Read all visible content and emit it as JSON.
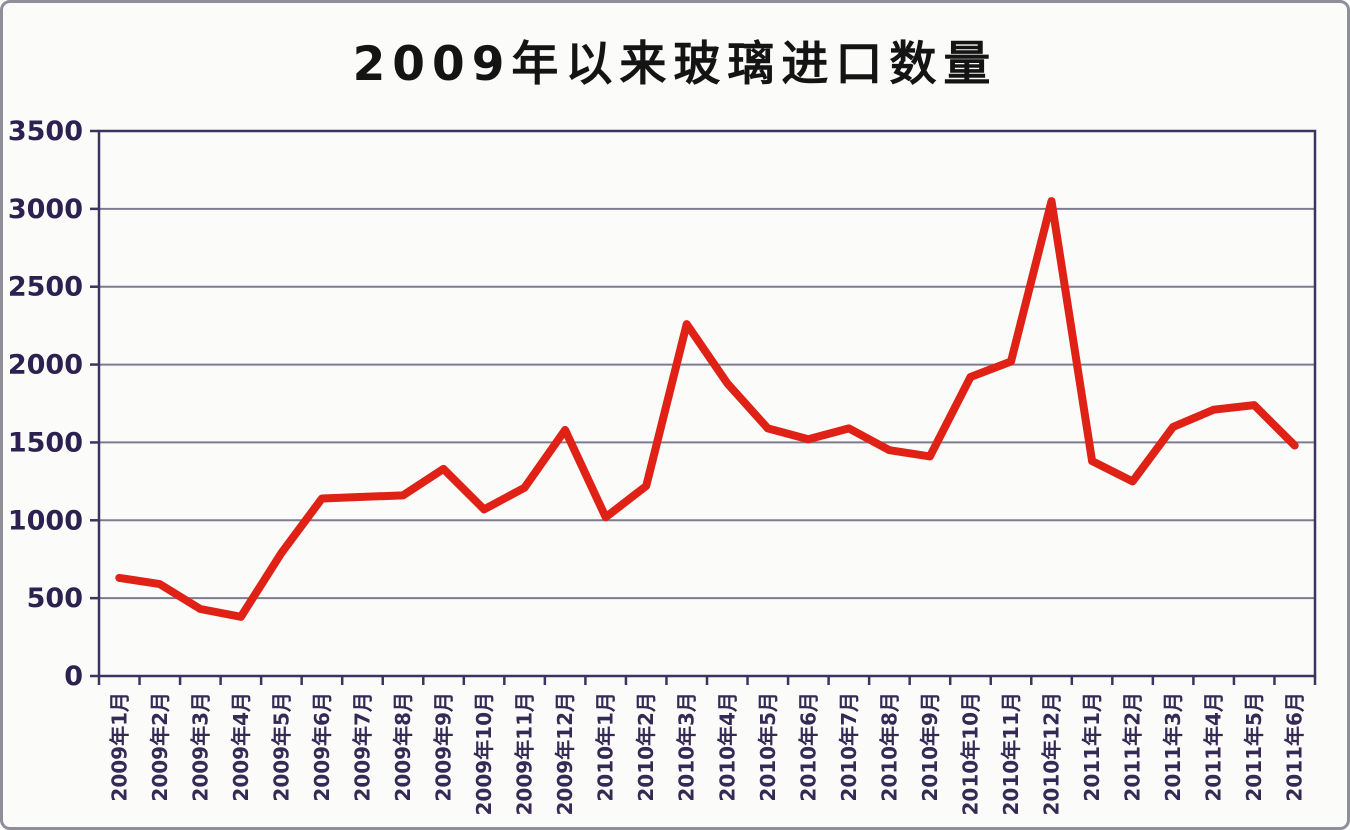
{
  "chart_data": {
    "type": "line",
    "title": "2009年以来玻璃进口数量",
    "xlabel": "",
    "ylabel": "",
    "ylim": [
      0,
      3500
    ],
    "ytick_interval": 500,
    "yticks": [
      0,
      500,
      1000,
      1500,
      2000,
      2500,
      3000,
      3500
    ],
    "grid": true,
    "legend": "none",
    "categories": [
      "2009年1月",
      "2009年2月",
      "2009年3月",
      "2009年4月",
      "2009年5月",
      "2009年6月",
      "2009年7月",
      "2009年8月",
      "2009年9月",
      "2009年10月",
      "2009年11月",
      "2009年12月",
      "2010年1月",
      "2010年2月",
      "2010年3月",
      "2010年4月",
      "2010年5月",
      "2010年6月",
      "2010年7月",
      "2010年8月",
      "2010年9月",
      "2010年10月",
      "2010年11月",
      "2010年12月",
      "2011年1月",
      "2011年2月",
      "2011年3月",
      "2011年4月",
      "2011年5月",
      "2011年6月"
    ],
    "series": [
      {
        "name": "玻璃进口数量",
        "values": [
          630,
          590,
          430,
          380,
          790,
          1140,
          1150,
          1160,
          1330,
          1070,
          1210,
          1580,
          1020,
          1220,
          2260,
          1880,
          1590,
          1520,
          1590,
          1450,
          1410,
          1920,
          2020,
          3050,
          1380,
          1250,
          1600,
          1710,
          1740,
          1480
        ]
      }
    ],
    "colors": {
      "line": "#df2116",
      "grid": "#7c7c8f",
      "axis": "#3a3560",
      "tick_text": "#2c2150",
      "background": "#fbfbf9",
      "frame_border": "#8f8f99"
    }
  }
}
